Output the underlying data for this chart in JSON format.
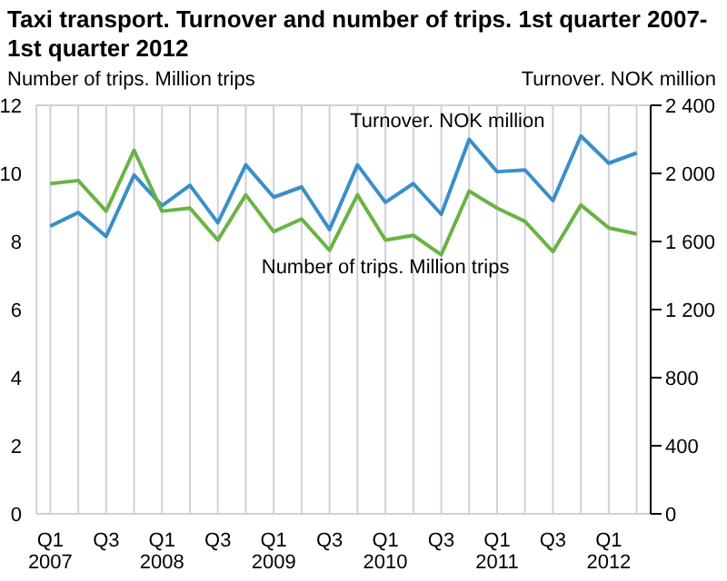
{
  "chart_data": {
    "type": "line",
    "title": "Taxi transport. Turnover and number of trips. 1st quarter 2007-\n1st quarter 2012",
    "ylabel": "Number of trips. Million trips",
    "y2label": "Turnover. NOK million",
    "categories": [
      "Q1\n2007",
      null,
      "Q3",
      null,
      "Q1\n2008",
      null,
      "Q3",
      null,
      "Q1\n2009",
      null,
      "Q3",
      null,
      "Q1\n2010",
      null,
      "Q3",
      null,
      "Q1\n2011",
      null,
      "Q3",
      null,
      "Q1\n2012",
      null
    ],
    "series": [
      {
        "name": "Turnover. NOK million",
        "color": "#3a8fc8",
        "axis": "y2",
        "values": [
          1690,
          1770,
          1630,
          1990,
          1810,
          1930,
          1710,
          2050,
          1860,
          1920,
          1670,
          2050,
          1830,
          1940,
          1760,
          2200,
          2010,
          2020,
          1840,
          2220,
          2060,
          2120
        ]
      },
      {
        "name": "Number of trips. Million trips",
        "color": "#6ab344",
        "values": [
          9.7,
          9.79,
          8.89,
          10.68,
          8.89,
          8.98,
          8.04,
          9.37,
          8.29,
          8.66,
          7.74,
          9.37,
          8.04,
          8.18,
          7.61,
          9.48,
          8.98,
          8.59,
          7.7,
          9.07,
          8.4,
          8.22
        ]
      }
    ],
    "ylim": [
      0,
      12
    ],
    "yticks": [
      0,
      2,
      4,
      6,
      8,
      10,
      12
    ],
    "y2lim": [
      0,
      2400
    ],
    "y2ticks": [
      0,
      400,
      800,
      {
        "value": 1200,
        "label": "1 200"
      },
      {
        "value": 1600,
        "label": "1 600"
      },
      {
        "value": 2000,
        "label": "2 000"
      },
      {
        "value": 2400,
        "label": "2 400"
      }
    ],
    "grid": true,
    "legend": false,
    "marker": "none",
    "line_style": "solid"
  }
}
